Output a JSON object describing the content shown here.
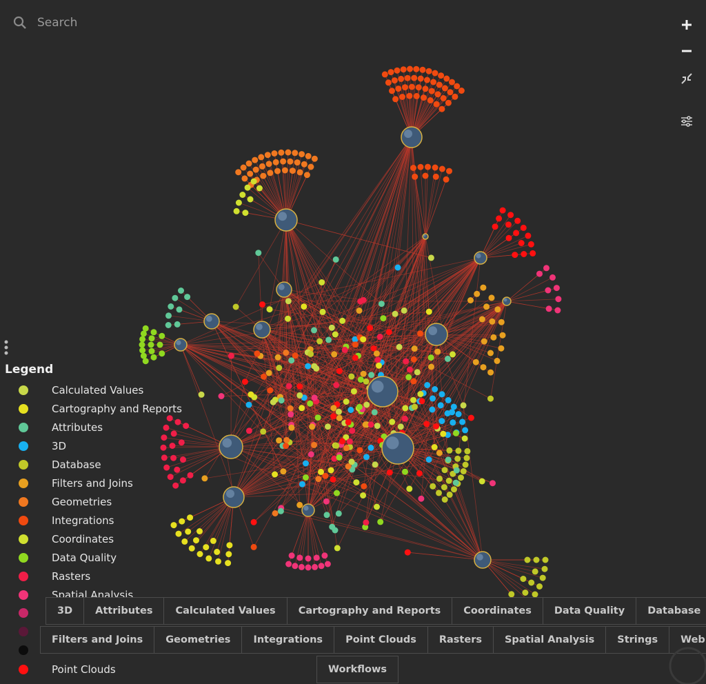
{
  "search": {
    "placeholder": "Search"
  },
  "legend": {
    "title": "Legend",
    "items": [
      {
        "name": "Calculated Values",
        "color": "#c8d84a"
      },
      {
        "name": "Cartography and Reports",
        "color": "#e6e020"
      },
      {
        "name": "Attributes",
        "color": "#60c898"
      },
      {
        "name": "3D",
        "color": "#18b0f0"
      },
      {
        "name": "Database",
        "color": "#c0c828"
      },
      {
        "name": "Filters and Joins",
        "color": "#e8a020"
      },
      {
        "name": "Geometries",
        "color": "#f07820"
      },
      {
        "name": "Integrations",
        "color": "#f04a10"
      },
      {
        "name": "Coordinates",
        "color": "#d0e030"
      },
      {
        "name": "Data Quality",
        "color": "#90d820"
      },
      {
        "name": "Rasters",
        "color": "#f01e48"
      },
      {
        "name": "Spatial Analysis",
        "color": "#f03478"
      },
      {
        "name": "Point Clouds",
        "color": "#ff1010"
      }
    ]
  },
  "filters": {
    "rows": [
      [
        "3D",
        "Attributes",
        "Calculated Values",
        "Cartography and Reports",
        "Coordinates",
        "Data Quality",
        "Database"
      ],
      [
        "Filters and Joins",
        "Geometries",
        "Integrations",
        "Point Clouds",
        "Rasters",
        "Spatial Analysis",
        "Strings",
        "Web"
      ],
      [
        "Workflows"
      ]
    ]
  }
}
